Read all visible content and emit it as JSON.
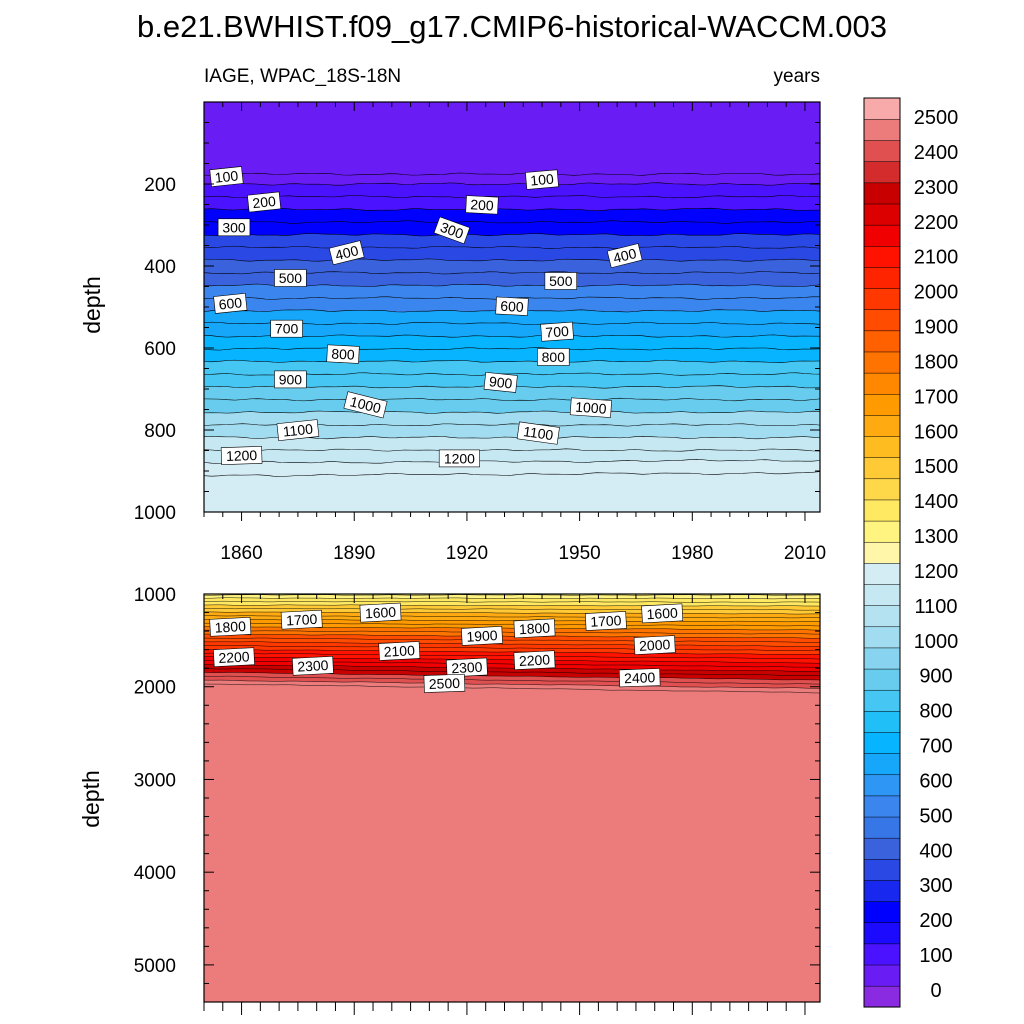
{
  "chart_data": {
    "type": "heatmap",
    "title": "b.e21.BWHIST.f09_g17.CMIP6-historical-WACCM.003",
    "left_string": "IAGE, WPAC_18S-18N",
    "right_string": "years",
    "ylabel": "depth",
    "xlim": [
      1850,
      2014
    ],
    "x_ticks": [
      1860,
      1890,
      1920,
      1950,
      1980,
      2010
    ],
    "x_tick_labels": [
      "1860",
      "1890",
      "1920",
      "1950",
      "1980",
      "2010"
    ],
    "colorbar": {
      "levels": [
        0,
        100,
        200,
        300,
        400,
        500,
        600,
        700,
        800,
        900,
        1000,
        1100,
        1200,
        1300,
        1400,
        1500,
        1600,
        1700,
        1800,
        1900,
        2000,
        2100,
        2200,
        2300,
        2400,
        2500
      ],
      "labels": [
        "0",
        "100",
        "200",
        "300",
        "400",
        "500",
        "600",
        "700",
        "800",
        "900",
        "1000",
        "1100",
        "1200",
        "1300",
        "1400",
        "1500",
        "1600",
        "1700",
        "1800",
        "1900",
        "2000",
        "2100",
        "2200",
        "2300",
        "2400",
        "2500"
      ],
      "colors": [
        "#8a2be2",
        "#6a1cf5",
        "#4a12ff",
        "#1c0aff",
        "#0000ff",
        "#1828ee",
        "#2a48e4",
        "#3a62dc",
        "#3676e6",
        "#3a86ee",
        "#2e96f4",
        "#16a6fa",
        "#06b4ff",
        "#20bff8",
        "#46c6f2",
        "#68ccee",
        "#88d4f0",
        "#a2dcf0",
        "#b4e2f0",
        "#c6e8f2",
        "#d4ecf4",
        "#fff6aa",
        "#fff480",
        "#ffe862",
        "#ffd84a",
        "#ffca36",
        "#ffbc20",
        "#ffaa10",
        "#ff9a00",
        "#ff8800",
        "#ff7400",
        "#ff6000",
        "#ff4c00",
        "#ff3800",
        "#ff2400",
        "#ff1200",
        "#f00000",
        "#dc0000",
        "#c80000",
        "#d42c2c",
        "#e05050",
        "#ec7c7c",
        "#f8aaaa"
      ]
    },
    "panels": [
      {
        "name": "upper",
        "ylim": [
          0,
          1000
        ],
        "y_ticks": [
          200,
          400,
          600,
          800,
          1000
        ],
        "y_tick_labels": [
          "200",
          "400",
          "600",
          "800",
          "1000"
        ],
        "contour_labels": [
          "100",
          "100",
          "200",
          "200",
          "300",
          "300",
          "400",
          "400",
          "500",
          "500",
          "600",
          "600",
          "700",
          "700",
          "800",
          "800",
          "900",
          "900",
          "1000",
          "1000",
          "1100",
          "1100",
          "1200",
          "1200"
        ]
      },
      {
        "name": "lower",
        "ylim": [
          1000,
          5400
        ],
        "y_ticks": [
          1000,
          2000,
          3000,
          4000,
          5000
        ],
        "y_tick_labels": [
          "1000",
          "2000",
          "3000",
          "4000",
          "5000"
        ],
        "contour_labels": [
          "1800",
          "1700",
          "1600",
          "1900",
          "1800",
          "1700",
          "1600",
          "2000",
          "2200",
          "2300",
          "2100",
          "2300",
          "2200",
          "2500",
          "2400"
        ]
      }
    ]
  }
}
